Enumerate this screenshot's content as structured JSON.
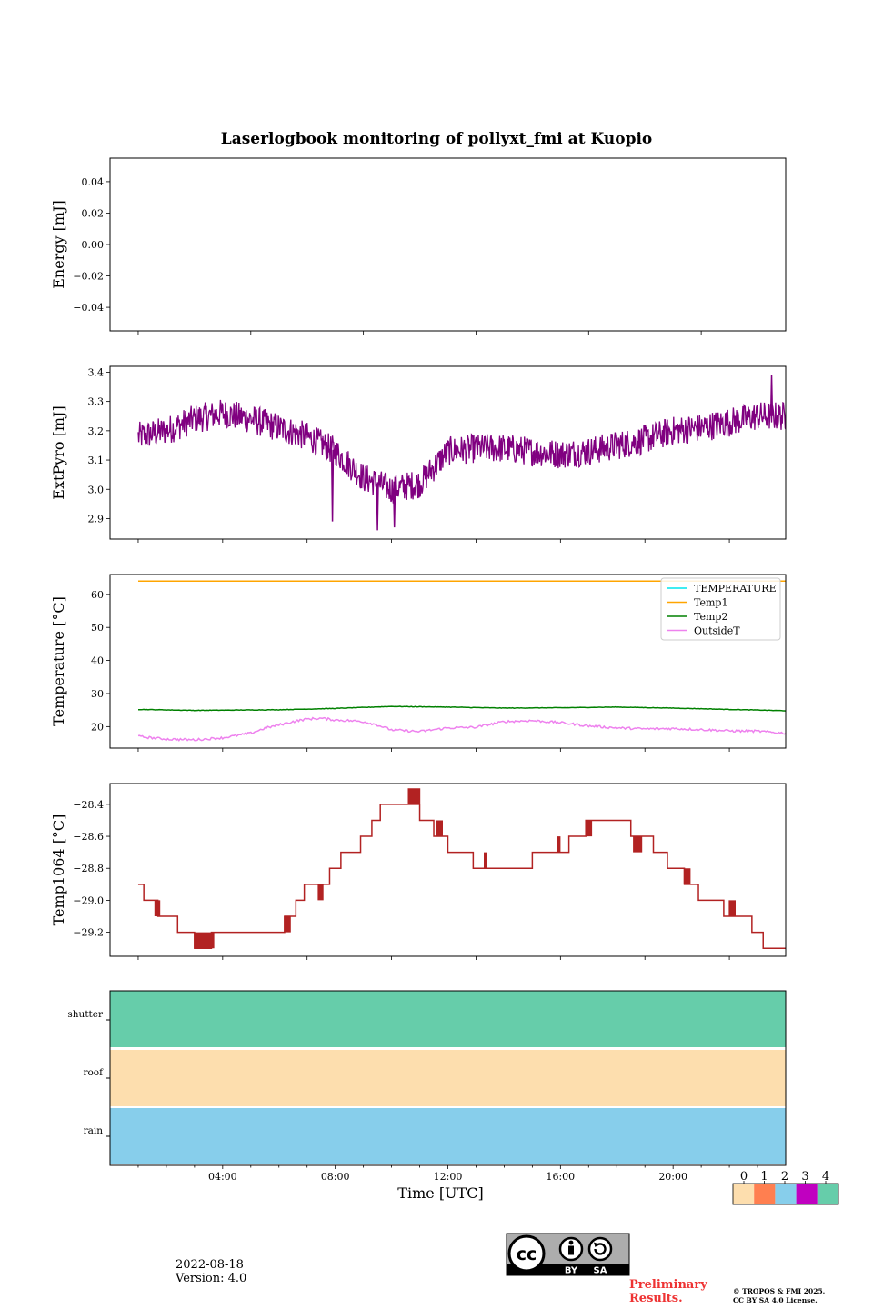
{
  "figure": {
    "title": "Laserlogbook monitoring of pollyxt_fmi at Kuopio",
    "date": "2022-08-18",
    "version": "Version: 4.0",
    "preliminary": "Preliminary Results.",
    "copyright_line1": "© TROPOS & FMI 2025.",
    "copyright_line2": "CC BY SA 4.0 License.",
    "license_badge": {
      "by": "BY",
      "sa": "SA",
      "cc": "cc"
    }
  },
  "chart_data": [
    {
      "id": "energy",
      "type": "line",
      "ylabel": "Energy [mJ]",
      "ylim": [
        -0.055,
        0.055
      ],
      "yticks": [
        0.04,
        0.02,
        0.0,
        -0.02,
        -0.04
      ],
      "ytick_labels": [
        "0.04",
        "0.02",
        "0.00",
        "−0.02",
        "−0.04"
      ],
      "series": []
    },
    {
      "id": "extpyro",
      "type": "line",
      "ylabel": "ExtPyro [mJ]",
      "ylim": [
        2.83,
        3.42
      ],
      "yticks": [
        3.4,
        3.3,
        3.2,
        3.1,
        3.0,
        2.9
      ],
      "ytick_labels": [
        "3.4",
        "3.3",
        "3.2",
        "3.1",
        "3.0",
        "2.9"
      ],
      "xlim": [
        0,
        24
      ],
      "color": "#800080",
      "trend": {
        "x": [
          1.0,
          2.0,
          3.0,
          4.0,
          5.0,
          6.0,
          7.0,
          8.0,
          9.0,
          10.0,
          11.0,
          12.0,
          13.0,
          14.0,
          15.0,
          16.0,
          17.0,
          18.0,
          19.0,
          20.0,
          21.0,
          22.0,
          23.0,
          24.0
        ],
        "y": [
          3.18,
          3.2,
          3.24,
          3.26,
          3.24,
          3.21,
          3.18,
          3.13,
          3.04,
          3.0,
          3.02,
          3.13,
          3.14,
          3.14,
          3.13,
          3.12,
          3.13,
          3.15,
          3.17,
          3.2,
          3.21,
          3.23,
          3.25,
          3.25
        ]
      },
      "noise_amplitude": 0.05,
      "spikes": [
        {
          "x": 7.9,
          "y": 2.89
        },
        {
          "x": 9.5,
          "y": 2.86
        },
        {
          "x": 10.1,
          "y": 2.87
        },
        {
          "x": 23.5,
          "y": 3.39
        }
      ]
    },
    {
      "id": "temperature",
      "type": "line",
      "ylabel": "Temperature [°C]",
      "ylim": [
        13.5,
        66.0
      ],
      "yticks": [
        60,
        50,
        40,
        30,
        20
      ],
      "ytick_labels": [
        "60",
        "50",
        "40",
        "30",
        "20"
      ],
      "legend": "top-right",
      "series": [
        {
          "name": "TEMPERATURE",
          "color": "#00e5ee",
          "x": [],
          "y": []
        },
        {
          "name": "Temp1",
          "color": "#ffa500",
          "x": [
            1,
            24
          ],
          "y": [
            64.0,
            64.0
          ]
        },
        {
          "name": "Temp2",
          "color": "#008000",
          "x": [
            1,
            3,
            6,
            8,
            10,
            12,
            14,
            16,
            18,
            20,
            22,
            24
          ],
          "y": [
            25.2,
            24.9,
            25.1,
            25.5,
            26.1,
            25.9,
            25.6,
            25.7,
            25.9,
            25.6,
            25.2,
            24.8
          ]
        },
        {
          "name": "OutsideT",
          "color": "#ee82ee",
          "x": [
            1,
            2,
            3,
            4,
            5,
            5.5,
            6,
            6.5,
            7,
            7.5,
            8,
            8.5,
            9,
            9.5,
            10,
            11,
            12,
            13,
            14,
            15,
            16,
            17,
            18,
            19,
            20,
            21,
            22,
            23,
            24
          ],
          "y": [
            17.0,
            16.2,
            16.0,
            16.6,
            18.0,
            19.5,
            20.5,
            21.5,
            22.3,
            22.5,
            22.0,
            21.8,
            21.5,
            20.5,
            19.0,
            18.5,
            19.6,
            19.8,
            21.5,
            21.8,
            21.2,
            20.2,
            19.6,
            19.3,
            19.4,
            19.1,
            18.7,
            18.6,
            18.0
          ]
        }
      ]
    },
    {
      "id": "temp1064",
      "type": "line",
      "ylabel": "Temp1064 [°C]",
      "ylim": [
        -29.35,
        -28.27
      ],
      "yticks": [
        -28.4,
        -28.6,
        -28.8,
        -29.0,
        -29.2
      ],
      "ytick_labels": [
        "−28.4",
        "−28.6",
        "−28.8",
        "−29.0",
        "−29.2"
      ],
      "color": "#b22222",
      "steps": [
        [
          1.0,
          -28.9
        ],
        [
          1.2,
          -29.0
        ],
        [
          1.7,
          -29.1
        ],
        [
          2.4,
          -29.2
        ],
        [
          3.0,
          -29.3
        ],
        [
          3.6,
          -29.2
        ],
        [
          6.2,
          -29.1
        ],
        [
          6.6,
          -29.0
        ],
        [
          6.9,
          -28.9
        ],
        [
          7.8,
          -28.8
        ],
        [
          8.2,
          -28.7
        ],
        [
          8.9,
          -28.6
        ],
        [
          9.3,
          -28.5
        ],
        [
          9.6,
          -28.4
        ],
        [
          11.0,
          -28.5
        ],
        [
          11.5,
          -28.6
        ],
        [
          12.0,
          -28.7
        ],
        [
          12.9,
          -28.8
        ],
        [
          15.0,
          -28.7
        ],
        [
          16.3,
          -28.6
        ],
        [
          16.9,
          -28.5
        ],
        [
          18.5,
          -28.6
        ],
        [
          19.3,
          -28.7
        ],
        [
          19.8,
          -28.8
        ],
        [
          20.4,
          -28.9
        ],
        [
          20.9,
          -29.0
        ],
        [
          21.8,
          -29.1
        ],
        [
          22.8,
          -29.2
        ],
        [
          23.2,
          -29.3
        ],
        [
          24.0,
          -29.3
        ]
      ],
      "flicker": [
        [
          1.6,
          1.8,
          -29.0,
          -29.1
        ],
        [
          3.0,
          3.7,
          -29.2,
          -29.3
        ],
        [
          6.2,
          6.4,
          -29.1,
          -29.2
        ],
        [
          7.4,
          7.6,
          -28.9,
          -29.0
        ],
        [
          10.6,
          11.0,
          -28.3,
          -28.4
        ],
        [
          11.6,
          11.8,
          -28.5,
          -28.6
        ],
        [
          13.3,
          13.4,
          -28.7,
          -28.8
        ],
        [
          15.9,
          16.0,
          -28.6,
          -28.7
        ],
        [
          16.9,
          17.1,
          -28.5,
          -28.6
        ],
        [
          18.6,
          18.9,
          -28.6,
          -28.7
        ],
        [
          20.4,
          20.6,
          -28.8,
          -28.9
        ],
        [
          22.0,
          22.2,
          -29.0,
          -29.1
        ]
      ]
    },
    {
      "id": "status",
      "type": "heatmap",
      "xlabel": "Time [UTC]",
      "xtick_labels": [
        "04:00",
        "08:00",
        "12:00",
        "16:00",
        "20:00"
      ],
      "xticks": [
        4,
        8,
        12,
        16,
        20
      ],
      "rows": [
        {
          "label": "shutter",
          "value": 4,
          "color": "#66cdaa"
        },
        {
          "label": "roof",
          "value": 0,
          "color": "#fddeae"
        },
        {
          "label": "rain",
          "value": 2,
          "color": "#87ceeb"
        }
      ]
    }
  ],
  "colorbar": {
    "labels": [
      "0",
      "1",
      "2",
      "3",
      "4"
    ],
    "colors": [
      "#fddeae",
      "#ff7f50",
      "#87ceeb",
      "#c000c0",
      "#66cdaa"
    ]
  }
}
